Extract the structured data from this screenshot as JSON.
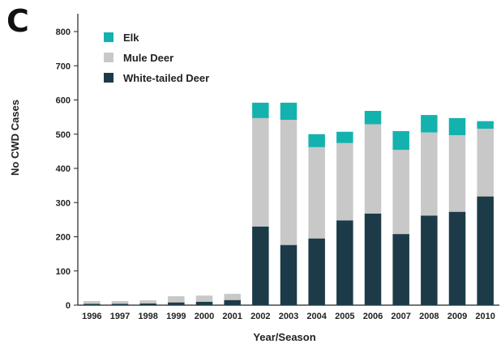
{
  "panel_label": "C",
  "chart_data": {
    "type": "bar",
    "stacked": true,
    "title": "",
    "xlabel": "Year/Season",
    "ylabel": "No CWD Cases",
    "ylim": [
      0,
      800
    ],
    "yticks": [
      0,
      100,
      200,
      300,
      400,
      500,
      600,
      700,
      800
    ],
    "grid": false,
    "legend_position": "top-left",
    "categories": [
      "1996",
      "1997",
      "1998",
      "1999",
      "2000",
      "2001",
      "2002",
      "2003",
      "2004",
      "2005",
      "2006",
      "2007",
      "2008",
      "2009",
      "2010"
    ],
    "series": [
      {
        "name": "White-tailed Deer",
        "color": "#1c3a47",
        "values": [
          4,
          4,
          5,
          8,
          10,
          15,
          230,
          176,
          195,
          248,
          268,
          208,
          262,
          273,
          318
        ]
      },
      {
        "name": "Mule Deer",
        "color": "#c8c8c8",
        "values": [
          8,
          8,
          9,
          18,
          18,
          18,
          317,
          366,
          267,
          226,
          261,
          246,
          243,
          224,
          198
        ]
      },
      {
        "name": "Elk",
        "color": "#14b2ae",
        "values": [
          0,
          0,
          0,
          0,
          0,
          0,
          45,
          50,
          38,
          33,
          39,
          55,
          51,
          50,
          22
        ]
      }
    ],
    "legend_order": [
      "Elk",
      "Mule Deer",
      "White-tailed Deer"
    ]
  }
}
